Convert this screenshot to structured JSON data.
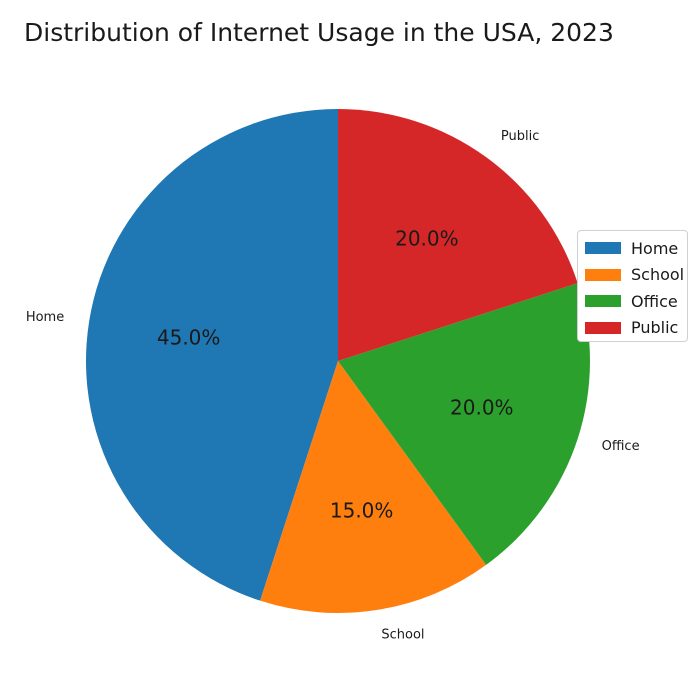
{
  "chart_data": {
    "type": "pie",
    "title": "Distribution of Internet Usage in the USA, 2023",
    "categories": [
      "Home",
      "School",
      "Office",
      "Public"
    ],
    "values": [
      45,
      15,
      20,
      20
    ],
    "value_labels": [
      "45.0%",
      "15.0%",
      "20.0%",
      "20.0%"
    ],
    "colors": [
      "#1f77b4",
      "#ff7f0e",
      "#2ca02c",
      "#d62728"
    ],
    "start_angle_deg": 90,
    "direction": "counterclockwise",
    "legend": {
      "placement": "right",
      "entries": [
        "Home",
        "School",
        "Office",
        "Public"
      ]
    }
  }
}
